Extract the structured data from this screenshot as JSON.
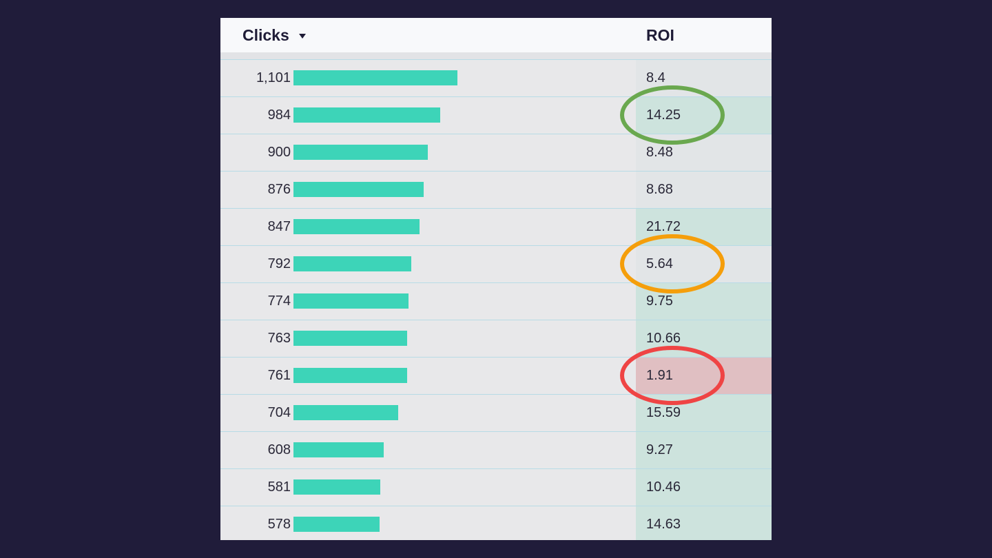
{
  "table": {
    "headers": {
      "clicks": "Clicks",
      "roi": "ROI"
    },
    "sort_icon": "triangle-down-icon",
    "colors": {
      "bar": "#3dd4b8",
      "roi_positive_bg": "#cde3dd",
      "roi_neutral_bg": "#e2e5e7",
      "roi_negative_bg": "#e0bfc2"
    },
    "max_clicks": 1101,
    "rows": [
      {
        "clicks": "1,101",
        "clicks_num": 1101,
        "roi": "8.4",
        "roi_tone": "neutral"
      },
      {
        "clicks": "984",
        "clicks_num": 984,
        "roi": "14.25",
        "roi_tone": "positive"
      },
      {
        "clicks": "900",
        "clicks_num": 900,
        "roi": "8.48",
        "roi_tone": "neutral"
      },
      {
        "clicks": "876",
        "clicks_num": 876,
        "roi": "8.68",
        "roi_tone": "neutral"
      },
      {
        "clicks": "847",
        "clicks_num": 847,
        "roi": "21.72",
        "roi_tone": "positive"
      },
      {
        "clicks": "792",
        "clicks_num": 792,
        "roi": "5.64",
        "roi_tone": "neutral"
      },
      {
        "clicks": "774",
        "clicks_num": 774,
        "roi": "9.75",
        "roi_tone": "positive"
      },
      {
        "clicks": "763",
        "clicks_num": 763,
        "roi": "10.66",
        "roi_tone": "positive"
      },
      {
        "clicks": "761",
        "clicks_num": 761,
        "roi": "1.91",
        "roi_tone": "negative"
      },
      {
        "clicks": "704",
        "clicks_num": 704,
        "roi": "15.59",
        "roi_tone": "positive"
      },
      {
        "clicks": "608",
        "clicks_num": 608,
        "roi": "9.27",
        "roi_tone": "positive"
      },
      {
        "clicks": "581",
        "clicks_num": 581,
        "roi": "10.46",
        "roi_tone": "positive"
      },
      {
        "clicks": "578",
        "clicks_num": 578,
        "roi": "14.63",
        "roi_tone": "positive"
      }
    ]
  },
  "annotations": [
    {
      "row": 1,
      "color": "#6aa84f"
    },
    {
      "row": 5,
      "color": "#f59e0b"
    },
    {
      "row": 8,
      "color": "#ef4444"
    }
  ]
}
